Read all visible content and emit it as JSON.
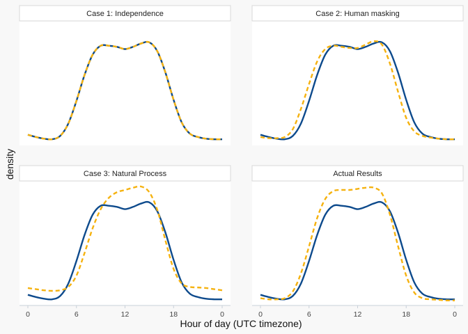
{
  "chart_data": {
    "type": "line",
    "xlabel": "Hour of day (UTC timezone)",
    "ylabel": "density",
    "x_ticks": [
      "0",
      "6",
      "12",
      "18",
      "0"
    ],
    "xlim": [
      0,
      24
    ],
    "ylim": [
      0,
      1
    ],
    "colors": {
      "solid": "#0d4a8c",
      "dashed": "#f5b20f"
    },
    "panels": [
      {
        "title": "Case 1: Independence",
        "series": [
          {
            "style": "solid",
            "x": [
              0,
              1,
              2,
              3,
              4,
              5,
              6,
              7,
              8,
              9,
              10,
              11,
              12,
              13,
              14,
              15,
              16,
              17,
              18,
              19,
              20,
              21,
              22,
              23,
              24
            ],
            "values": [
              0.07,
              0.05,
              0.035,
              0.03,
              0.06,
              0.17,
              0.37,
              0.6,
              0.78,
              0.86,
              0.86,
              0.85,
              0.83,
              0.85,
              0.88,
              0.89,
              0.81,
              0.62,
              0.38,
              0.18,
              0.08,
              0.05,
              0.035,
              0.03,
              0.03
            ]
          },
          {
            "style": "dashed",
            "x": [
              0,
              1,
              2,
              3,
              4,
              5,
              6,
              7,
              8,
              9,
              10,
              11,
              12,
              13,
              14,
              15,
              16,
              17,
              18,
              19,
              20,
              21,
              22,
              23,
              24
            ],
            "values": [
              0.07,
              0.05,
              0.035,
              0.03,
              0.06,
              0.17,
              0.37,
              0.6,
              0.78,
              0.86,
              0.86,
              0.85,
              0.83,
              0.85,
              0.88,
              0.89,
              0.81,
              0.62,
              0.38,
              0.18,
              0.08,
              0.05,
              0.035,
              0.03,
              0.03
            ]
          }
        ]
      },
      {
        "title": "Case 2: Human masking",
        "series": [
          {
            "style": "solid",
            "x": [
              0,
              1,
              2,
              3,
              4,
              5,
              6,
              7,
              8,
              9,
              10,
              11,
              12,
              13,
              14,
              15,
              16,
              17,
              18,
              19,
              20,
              21,
              22,
              23,
              24
            ],
            "values": [
              0.07,
              0.05,
              0.035,
              0.03,
              0.06,
              0.17,
              0.37,
              0.6,
              0.78,
              0.86,
              0.86,
              0.85,
              0.83,
              0.85,
              0.88,
              0.89,
              0.81,
              0.62,
              0.38,
              0.18,
              0.08,
              0.05,
              0.035,
              0.03,
              0.03
            ]
          },
          {
            "style": "dashed",
            "x": [
              0,
              1,
              2,
              3,
              4,
              5,
              6,
              7,
              8,
              9,
              10,
              11,
              12,
              13,
              14,
              15,
              16,
              17,
              18,
              19,
              20,
              21,
              22,
              23,
              24
            ],
            "values": [
              0.05,
              0.04,
              0.04,
              0.05,
              0.12,
              0.3,
              0.52,
              0.72,
              0.83,
              0.86,
              0.85,
              0.84,
              0.84,
              0.87,
              0.9,
              0.87,
              0.7,
              0.45,
              0.22,
              0.1,
              0.06,
              0.045,
              0.035,
              0.03,
              0.03
            ]
          }
        ]
      },
      {
        "title": "Case 3: Natural Process",
        "series": [
          {
            "style": "solid",
            "x": [
              0,
              1,
              2,
              3,
              4,
              5,
              6,
              7,
              8,
              9,
              10,
              11,
              12,
              13,
              14,
              15,
              16,
              17,
              18,
              19,
              20,
              21,
              22,
              23,
              24
            ],
            "values": [
              0.07,
              0.05,
              0.035,
              0.03,
              0.06,
              0.17,
              0.37,
              0.6,
              0.78,
              0.86,
              0.86,
              0.85,
              0.83,
              0.85,
              0.88,
              0.89,
              0.81,
              0.62,
              0.38,
              0.18,
              0.08,
              0.05,
              0.035,
              0.03,
              0.03
            ]
          },
          {
            "style": "dashed",
            "x": [
              0,
              1,
              2,
              3,
              4,
              5,
              6,
              7,
              8,
              9,
              10,
              11,
              12,
              13,
              14,
              15,
              16,
              17,
              18,
              19,
              20,
              21,
              22,
              23,
              24
            ],
            "values": [
              0.13,
              0.12,
              0.11,
              0.105,
              0.11,
              0.14,
              0.24,
              0.44,
              0.66,
              0.83,
              0.93,
              0.98,
              1.0,
              1.02,
              1.03,
              0.98,
              0.82,
              0.55,
              0.3,
              0.17,
              0.14,
              0.135,
              0.13,
              0.12,
              0.11
            ]
          }
        ]
      },
      {
        "title": "Actual Results",
        "series": [
          {
            "style": "solid",
            "x": [
              0,
              1,
              2,
              3,
              4,
              5,
              6,
              7,
              8,
              9,
              10,
              11,
              12,
              13,
              14,
              15,
              16,
              17,
              18,
              19,
              20,
              21,
              22,
              23,
              24
            ],
            "values": [
              0.07,
              0.05,
              0.035,
              0.03,
              0.06,
              0.17,
              0.37,
              0.6,
              0.78,
              0.86,
              0.86,
              0.85,
              0.83,
              0.85,
              0.88,
              0.89,
              0.81,
              0.62,
              0.38,
              0.18,
              0.08,
              0.05,
              0.035,
              0.03,
              0.03
            ]
          },
          {
            "style": "dashed",
            "x": [
              0,
              1,
              2,
              3,
              4,
              5,
              6,
              7,
              8,
              9,
              10,
              11,
              12,
              13,
              14,
              15,
              16,
              17,
              18,
              19,
              20,
              21,
              22,
              23,
              24
            ],
            "values": [
              0.04,
              0.03,
              0.03,
              0.04,
              0.1,
              0.26,
              0.5,
              0.75,
              0.92,
              0.99,
              1.0,
              1.0,
              1.01,
              1.02,
              1.02,
              0.97,
              0.78,
              0.5,
              0.24,
              0.09,
              0.04,
              0.03,
              0.025,
              0.02,
              0.02
            ]
          }
        ]
      }
    ]
  }
}
